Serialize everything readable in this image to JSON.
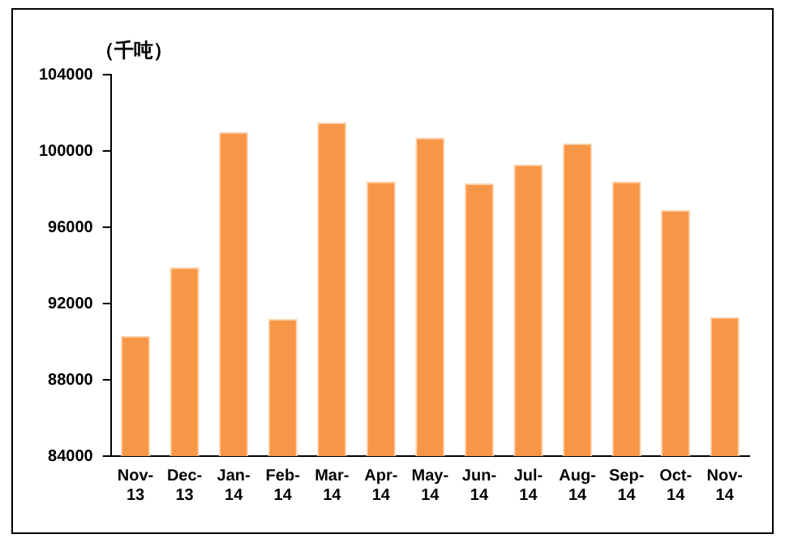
{
  "chart_data": {
    "type": "bar",
    "ylabel": "（千吨）",
    "categories": [
      "Nov-13",
      "Dec-13",
      "Jan-14",
      "Feb-14",
      "Mar-14",
      "Apr-14",
      "May-14",
      "Jun-14",
      "Jul-14",
      "Aug-14",
      "Sep-14",
      "Oct-14",
      "Nov-14"
    ],
    "values": [
      90300,
      93900,
      101000,
      91200,
      101500,
      98400,
      100700,
      98300,
      99300,
      100400,
      98400,
      96900,
      91300
    ],
    "color": "#f79646",
    "ylim": [
      84000,
      104000
    ],
    "yticks": [
      84000,
      88000,
      92000,
      96000,
      100000,
      104000
    ],
    "grid": false,
    "legend": false
  }
}
